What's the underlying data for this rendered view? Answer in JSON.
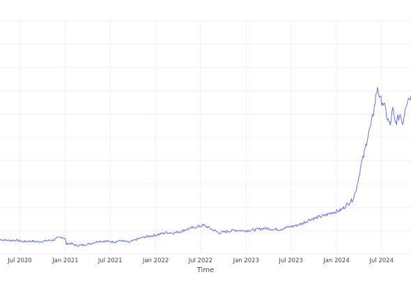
{
  "chart_data": {
    "type": "line",
    "title": "",
    "xlabel": "Time",
    "ylabel": "",
    "grid": true,
    "legend": "none",
    "line_color": "#636efa",
    "grid_color": "#eef0f4",
    "x_ticks": [
      {
        "date": "2020-07-01",
        "label": "Jul 2020"
      },
      {
        "date": "2021-01-01",
        "label": "Jan 2021"
      },
      {
        "date": "2021-07-01",
        "label": "Jul 2021"
      },
      {
        "date": "2022-01-01",
        "label": "Jan 2022"
      },
      {
        "date": "2022-07-01",
        "label": "Jul 2022"
      },
      {
        "date": "2023-01-01",
        "label": "Jan 2023"
      },
      {
        "date": "2023-07-01",
        "label": "Jul 2023"
      },
      {
        "date": "2024-01-01",
        "label": "Jan 2024"
      },
      {
        "date": "2024-07-01",
        "label": "Jul 2024"
      }
    ],
    "xlim": [
      "2020-04-12",
      "2024-10-28"
    ],
    "ylim": [
      0,
      100
    ],
    "series": [
      {
        "x": [
          "2020-04-12",
          "2020-05-15",
          "2020-06-15",
          "2020-07-15",
          "2020-08-15",
          "2020-09-15",
          "2020-10-15",
          "2020-11-15",
          "2020-12-01",
          "2020-12-20",
          "2021-01-01",
          "2021-01-05",
          "2021-01-20",
          "2021-02-15",
          "2021-03-15",
          "2021-04-15",
          "2021-05-15",
          "2021-06-15",
          "2021-07-15",
          "2021-08-15",
          "2021-09-15",
          "2021-10-15",
          "2021-11-15",
          "2021-12-15",
          "2022-01-15",
          "2022-02-15",
          "2022-03-15",
          "2022-04-15",
          "2022-05-15",
          "2022-06-15",
          "2022-07-15",
          "2022-08-15",
          "2022-09-15",
          "2022-10-15",
          "2022-11-15",
          "2022-12-15",
          "2023-01-15",
          "2023-02-15",
          "2023-03-15",
          "2023-04-15",
          "2023-05-15",
          "2023-06-15",
          "2023-07-15",
          "2023-08-15",
          "2023-09-15",
          "2023-10-15",
          "2023-11-15",
          "2023-12-15",
          "2024-01-15",
          "2024-02-01",
          "2024-02-15",
          "2024-03-01",
          "2024-03-10",
          "2024-03-20",
          "2024-04-01",
          "2024-04-10",
          "2024-04-20",
          "2024-05-01",
          "2024-05-10",
          "2024-05-20",
          "2024-05-28",
          "2024-06-05",
          "2024-06-15",
          "2024-06-25",
          "2024-07-05",
          "2024-07-15",
          "2024-07-25",
          "2024-08-05",
          "2024-08-15",
          "2024-08-25",
          "2024-09-05",
          "2024-09-15",
          "2024-09-25",
          "2024-10-05",
          "2024-10-15",
          "2024-10-28"
        ],
        "y": [
          6.2,
          5.8,
          5.9,
          5.3,
          5.5,
          5.2,
          5.6,
          6.0,
          6.8,
          7.2,
          6.5,
          4.2,
          4.6,
          3.6,
          3.8,
          4.5,
          5.5,
          5.4,
          5.2,
          5.7,
          4.9,
          6.2,
          7.2,
          7.8,
          8.4,
          9.2,
          9.0,
          9.8,
          10.8,
          11.6,
          12.3,
          10.6,
          9.0,
          9.6,
          10.2,
          10.0,
          10.1,
          10.5,
          11.0,
          10.7,
          10.5,
          11.4,
          12.0,
          13.0,
          14.8,
          15.6,
          16.5,
          17.8,
          18.6,
          20.0,
          21.5,
          22.8,
          24.0,
          27.5,
          33.5,
          38.5,
          42.0,
          48.0,
          52.0,
          55.5,
          60.0,
          65.0,
          72.0,
          66.0,
          65.5,
          62.5,
          58.0,
          55.0,
          62.0,
          56.0,
          58.0,
          60.0,
          56.0,
          63.5,
          66.5,
          68.0
        ]
      }
    ]
  }
}
